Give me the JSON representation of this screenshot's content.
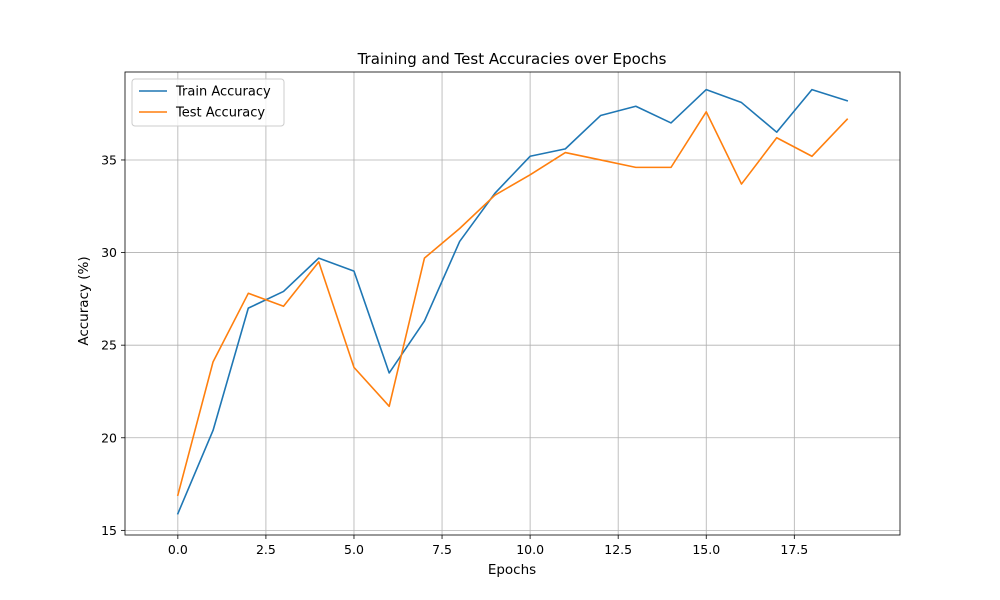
{
  "chart_data": {
    "type": "line",
    "title": "Training and Test Accuracies over Epochs",
    "xlabel": "Epochs",
    "ylabel": "Accuracy (%)",
    "xlim": [
      -1.5,
      20.5
    ],
    "ylim": [
      14.75,
      39.75
    ],
    "xticks": [
      0.0,
      2.5,
      5.0,
      7.5,
      10.0,
      12.5,
      15.0,
      17.5
    ],
    "xtick_labels": [
      "0.0",
      "2.5",
      "5.0",
      "7.5",
      "10.0",
      "12.5",
      "15.0",
      "17.5"
    ],
    "yticks": [
      15,
      20,
      25,
      30,
      35
    ],
    "ytick_labels": [
      "15",
      "20",
      "25",
      "30",
      "35"
    ],
    "grid": true,
    "legend_position": "top-left",
    "x": [
      0,
      1,
      2,
      3,
      4,
      5,
      6,
      7,
      8,
      9,
      10,
      11,
      12,
      13,
      14,
      15,
      16,
      17,
      18,
      19
    ],
    "series": [
      {
        "name": "Train Accuracy",
        "color": "#1f77b4",
        "values": [
          15.9,
          20.4,
          27.0,
          27.9,
          29.7,
          29.0,
          23.5,
          26.3,
          30.6,
          33.2,
          35.2,
          35.6,
          37.4,
          37.9,
          37.0,
          38.8,
          38.1,
          36.5,
          38.8,
          38.2
        ]
      },
      {
        "name": "Test Accuracy",
        "color": "#ff7f0e",
        "values": [
          16.9,
          24.1,
          27.8,
          27.1,
          29.5,
          23.8,
          21.7,
          29.7,
          31.3,
          33.1,
          34.2,
          35.4,
          35.0,
          34.6,
          34.6,
          37.6,
          33.7,
          36.2,
          35.2,
          37.2
        ]
      }
    ]
  }
}
